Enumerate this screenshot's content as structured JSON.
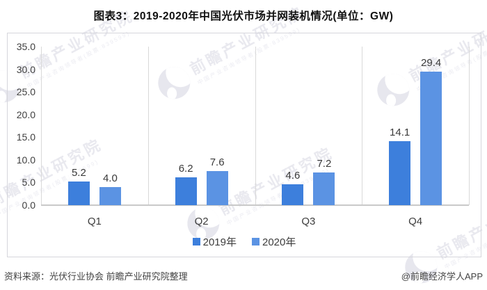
{
  "chart_data": {
    "type": "bar",
    "title": "图表3：2019-2020年中国光伏市场并网装机情况(单位：GW)",
    "unit": "GW",
    "categories": [
      "Q1",
      "Q2",
      "Q3",
      "Q4"
    ],
    "series": [
      {
        "name": "2019年",
        "color": "#3D7FDC",
        "values": [
          5.2,
          6.2,
          4.6,
          14.1
        ]
      },
      {
        "name": "2020年",
        "color": "#5B93E3",
        "values": [
          4.0,
          7.6,
          7.2,
          29.4
        ]
      }
    ],
    "ylim": [
      0,
      35
    ],
    "ytick_labels": [
      "35.0",
      "30.0",
      "25.0",
      "20.0",
      "15.0",
      "10.0",
      "5.0",
      "0.0"
    ],
    "grid": "vertical category separators only, boxed plot area",
    "legend_position": "bottom-center",
    "value_labels": "above each bar, one decimal place"
  },
  "watermark": {
    "brand": "前瞻产业研究院",
    "tagline": "中国产业咨询领导者(股票:839599)"
  },
  "footer": {
    "source": "资料来源：光伏行业协会 前瞻产业研究院整理",
    "credit": "@前瞻经济学人APP"
  }
}
